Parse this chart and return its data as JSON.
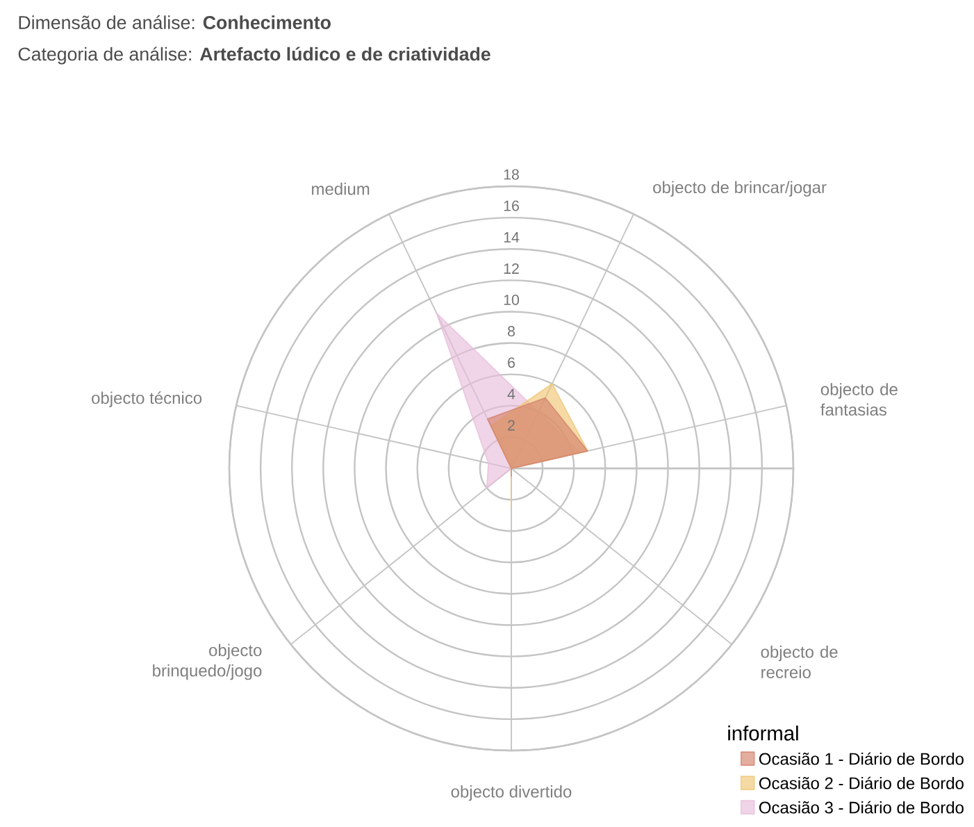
{
  "chart_data": {
    "type": "radar",
    "title": "Dimensão de análise: **Conhecimento**",
    "subtitle": "Categoria de análise: **Artefacto lúdico e de criatividade**",
    "categories": [
      "objecto de brincar/jogar",
      "objecto de fantasias",
      "objecto de recreio",
      "objecto divertido",
      "objecto brinquedo/jogo",
      "objecto técnico",
      "medium"
    ],
    "series": [
      {
        "name": "Ocasião 1 - Diário de Bordo",
        "color": "#d4826c",
        "values": [
          5,
          5,
          0,
          0.5,
          0,
          0,
          3.5
        ]
      },
      {
        "name": "Ocasião 2 - Diário de Bordo",
        "color": "#f0c674",
        "values": [
          6,
          5,
          0,
          2.5,
          0,
          0,
          3
        ]
      },
      {
        "name": "Ocasião 3 - Diário de Bordo",
        "color": "#e8bddb",
        "values": [
          4,
          4.5,
          0,
          0,
          2,
          1.5,
          11
        ]
      }
    ],
    "ylim": [
      0,
      18
    ],
    "yticks": [
      2,
      4,
      6,
      8,
      10,
      12,
      14,
      16,
      18
    ],
    "grid": true,
    "legend": "bottom right",
    "legend_title": "informal"
  }
}
